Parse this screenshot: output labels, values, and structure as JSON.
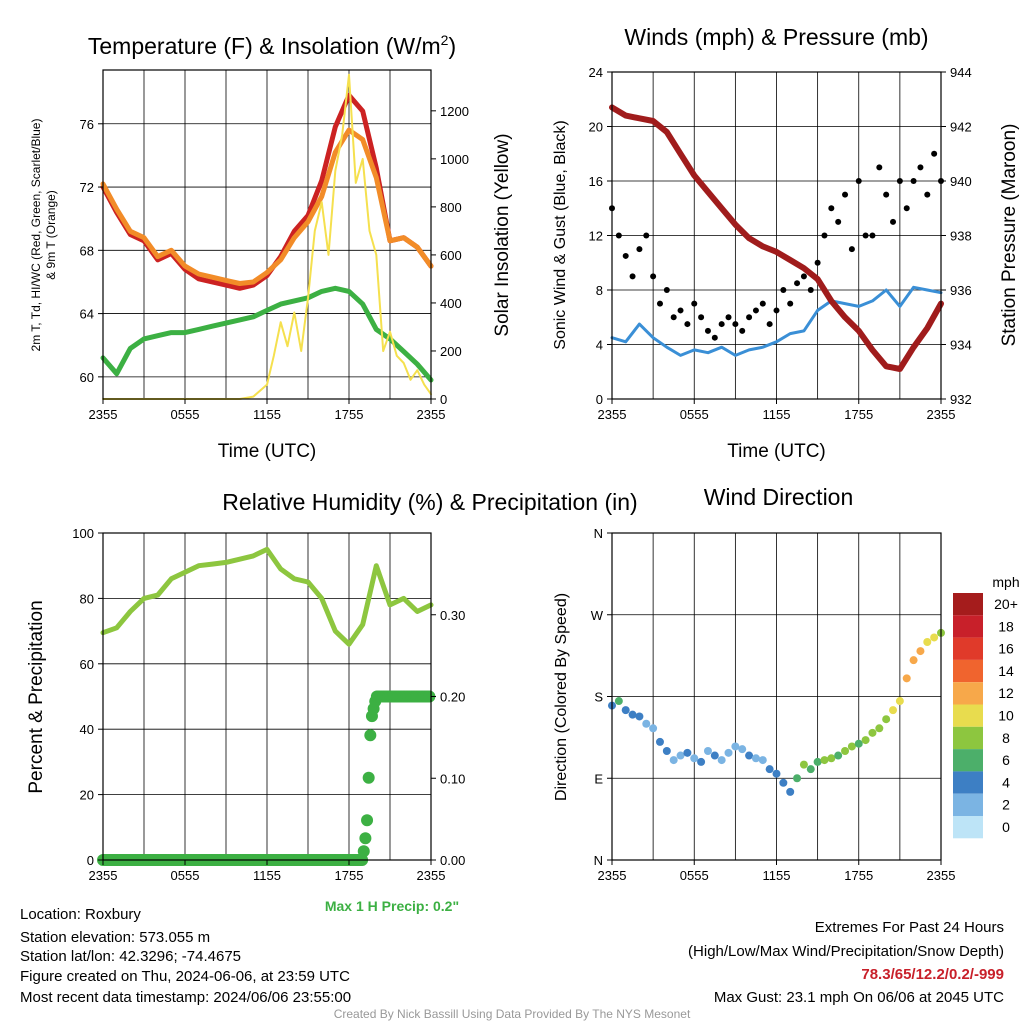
{
  "chart_data": [
    {
      "type": "line",
      "title": "Temperature (F) & Insolation (W/m2)",
      "title_main": "Temperature (F) & Insolation (W/m",
      "title_sup": "2",
      "title_end": ")",
      "xlabel": "Time (UTC)",
      "ylabel_line1": "2m T, Td, HI/WC (Red, Green, Scarlet/Blue)",
      "ylabel_line2": "& 9m T (Orange)",
      "ylabel_right": "Solar Insolation (Yellow)",
      "xticks": [
        "2355",
        "0555",
        "1155",
        "1755",
        "2355"
      ],
      "ylim": [
        58.6,
        79.4
      ],
      "yticks": [
        60,
        64,
        68,
        72,
        76
      ],
      "ylim_right": [
        0,
        1370
      ],
      "yticks_right": [
        0,
        200,
        400,
        600,
        800,
        1000,
        1200
      ],
      "series": [
        {
          "name": "2m Temperature",
          "color": "#cc2222",
          "x": [
            0,
            1,
            2,
            3,
            4,
            5,
            6,
            7,
            8,
            9,
            10,
            11,
            12,
            13,
            14,
            15,
            16,
            17,
            18,
            19,
            20,
            21,
            22,
            23,
            24
          ],
          "values": [
            72.0,
            70.4,
            69.0,
            68.6,
            67.4,
            67.8,
            66.8,
            66.2,
            66.0,
            65.8,
            65.6,
            65.8,
            66.4,
            67.6,
            69.2,
            70.2,
            72.4,
            75.8,
            77.8,
            76.8,
            73.2,
            68.6,
            68.8,
            68.2,
            67.0
          ]
        },
        {
          "name": "9m Temperature",
          "color": "#f28c28",
          "x": [
            0,
            1,
            2,
            3,
            4,
            5,
            6,
            7,
            8,
            9,
            10,
            11,
            12,
            13,
            14,
            15,
            16,
            17,
            18,
            19,
            20,
            21,
            22,
            23,
            24
          ],
          "values": [
            72.2,
            70.6,
            69.2,
            68.8,
            67.6,
            68.0,
            67.0,
            66.5,
            66.3,
            66.1,
            65.9,
            66.0,
            66.6,
            67.4,
            68.8,
            69.8,
            71.4,
            74.2,
            75.6,
            75.0,
            72.6,
            68.6,
            68.8,
            68.2,
            67.0
          ]
        },
        {
          "name": "Dew Point",
          "color": "#3cb043",
          "x": [
            0,
            1,
            2,
            3,
            4,
            5,
            6,
            7,
            8,
            9,
            10,
            11,
            12,
            13,
            14,
            15,
            16,
            17,
            18,
            19,
            20,
            21,
            22,
            23,
            24
          ],
          "values": [
            61.2,
            60.2,
            61.8,
            62.4,
            62.6,
            62.8,
            62.8,
            63.0,
            63.2,
            63.4,
            63.6,
            63.8,
            64.2,
            64.6,
            64.8,
            65.0,
            65.4,
            65.6,
            65.4,
            64.6,
            63.0,
            62.4,
            61.6,
            60.8,
            59.8
          ]
        },
        {
          "name": "Solar Insolation",
          "color": "#f5e04e",
          "axis": "right",
          "x": [
            0,
            2,
            4,
            6,
            8,
            9,
            10,
            11,
            12,
            12.5,
            13,
            13.5,
            14,
            14.5,
            15,
            15.5,
            16,
            16.5,
            17,
            17.5,
            18,
            18.5,
            19,
            19.5,
            20,
            20.5,
            21,
            21.5,
            22,
            22.5,
            23,
            23.5,
            24
          ],
          "values": [
            0,
            0,
            0,
            0,
            0,
            0,
            0,
            10,
            60,
            180,
            320,
            220,
            360,
            200,
            420,
            700,
            820,
            600,
            950,
            1100,
            1350,
            900,
            1000,
            700,
            600,
            200,
            280,
            180,
            150,
            80,
            120,
            60,
            20
          ]
        }
      ]
    },
    {
      "type": "scatter",
      "title": "Winds (mph) & Pressure (mb)",
      "xlabel": "Time (UTC)",
      "ylabel": "Sonic Wind & Gust (Blue, Black)",
      "ylabel_right": "Station Pressure (Maroon)",
      "xticks": [
        "2355",
        "0555",
        "1155",
        "1755",
        "2355"
      ],
      "ylim": [
        0,
        24
      ],
      "yticks": [
        0,
        4,
        8,
        12,
        16,
        20,
        24
      ],
      "ylim_right": [
        932,
        944
      ],
      "yticks_right": [
        932,
        934,
        936,
        938,
        940,
        942,
        944
      ],
      "series": [
        {
          "name": "Sonic Wind",
          "color": "#3a8fd6",
          "x": [
            0,
            1,
            2,
            3,
            4,
            5,
            6,
            7,
            8,
            9,
            10,
            11,
            12,
            13,
            14,
            15,
            16,
            17,
            18,
            19,
            20,
            21,
            22,
            23,
            24
          ],
          "values": [
            4.5,
            4.2,
            5.5,
            4.5,
            3.8,
            3.2,
            3.6,
            3.4,
            3.8,
            3.2,
            3.6,
            3.8,
            4.2,
            4.8,
            5.0,
            6.5,
            7.2,
            7.0,
            6.8,
            7.2,
            8.0,
            6.8,
            8.2,
            8.0,
            7.8
          ]
        },
        {
          "name": "Gust",
          "color": "#000000",
          "x": [
            0,
            0.5,
            1,
            1.5,
            2,
            2.5,
            3,
            3.5,
            4,
            4.5,
            5,
            5.5,
            6,
            6.5,
            7,
            7.5,
            8,
            8.5,
            9,
            9.5,
            10,
            10.5,
            11,
            11.5,
            12,
            12.5,
            13,
            13.5,
            14,
            14.5,
            15,
            15.5,
            16,
            16.5,
            17,
            17.5,
            18,
            18.5,
            19,
            19.5,
            20,
            20.5,
            21,
            21.5,
            22,
            22.5,
            23,
            23.5,
            24
          ],
          "values": [
            14,
            12,
            10.5,
            9,
            11,
            12,
            9,
            7,
            8,
            6,
            6.5,
            5.5,
            7,
            6,
            5,
            4.5,
            5.5,
            6,
            5.5,
            5,
            6,
            6.5,
            7,
            5.5,
            6.5,
            8,
            7,
            8.5,
            9,
            8,
            10,
            12,
            14,
            13,
            15,
            11,
            16,
            12,
            12,
            17,
            15,
            13,
            16,
            14,
            16,
            17,
            15,
            18,
            16
          ]
        },
        {
          "name": "Station Pressure",
          "color": "#a01c1c",
          "axis": "right",
          "x": [
            0,
            1,
            2,
            3,
            4,
            5,
            6,
            7,
            8,
            9,
            10,
            11,
            12,
            13,
            14,
            15,
            16,
            17,
            18,
            19,
            20,
            21,
            22,
            23,
            24
          ],
          "values": [
            942.7,
            942.4,
            942.3,
            942.2,
            941.8,
            941.0,
            940.2,
            939.6,
            939.0,
            938.4,
            937.9,
            937.6,
            937.4,
            937.1,
            936.8,
            936.4,
            935.6,
            935.0,
            934.5,
            933.8,
            933.2,
            933.1,
            933.9,
            934.6,
            935.5
          ]
        }
      ]
    },
    {
      "type": "line",
      "title": "Relative Humidity (%) & Precipitation (in)",
      "xlabel": "",
      "ylabel": "Percent & Precipitation",
      "xticks": [
        "2355",
        "0555",
        "1155",
        "1755",
        "2355"
      ],
      "ylim": [
        0,
        100
      ],
      "yticks": [
        0,
        20,
        40,
        60,
        80,
        100
      ],
      "ylim_right": [
        0,
        0.4
      ],
      "yticks_right": [
        "0.00",
        "0.10",
        "0.20",
        "0.30"
      ],
      "annotation": "Max 1 H Precip: 0.2\"",
      "series": [
        {
          "name": "Relative Humidity",
          "color": "#8dc63f",
          "x": [
            0,
            1,
            2,
            3,
            4,
            5,
            6,
            7,
            8,
            9,
            10,
            11,
            12,
            13,
            14,
            15,
            16,
            17,
            18,
            19,
            20,
            21,
            22,
            23,
            24
          ],
          "values": [
            69.5,
            71,
            76,
            80,
            81,
            86,
            88,
            90,
            90.5,
            91,
            92,
            93,
            95,
            89,
            86,
            85,
            80,
            70,
            66,
            72,
            90,
            78,
            80,
            76,
            78
          ]
        },
        {
          "name": "Accumulated Precipitation",
          "color": "#3cb043",
          "axis": "right",
          "x": [
            0,
            1,
            2,
            3,
            4,
            5,
            6,
            7,
            8,
            9,
            10,
            11,
            12,
            13,
            14,
            15,
            16,
            17,
            18,
            19,
            19.3,
            19.6,
            20,
            20.5,
            21,
            22,
            23,
            24
          ],
          "values": [
            0,
            0,
            0,
            0,
            0,
            0,
            0,
            0,
            0,
            0,
            0,
            0,
            0,
            0,
            0,
            0,
            0,
            0,
            0,
            0,
            0.04,
            0.17,
            0.2,
            0.2,
            0.2,
            0.2,
            0.2,
            0.2
          ]
        }
      ]
    },
    {
      "type": "scatter",
      "title": "Wind Direction",
      "ylabel": "Direction (Colored By Speed)",
      "xticks": [
        "2355",
        "0555",
        "1155",
        "1755",
        "2355"
      ],
      "ylim_deg": [
        0,
        360
      ],
      "yticks": [
        "N",
        "E",
        "S",
        "W",
        "N"
      ],
      "legend_title": "mph",
      "legend_labels": [
        "20+",
        "18",
        "16",
        "14",
        "12",
        "10",
        "8",
        "6",
        "4",
        "2",
        "0"
      ],
      "legend_colors": [
        "#a51c1c",
        "#c8202a",
        "#e03a2a",
        "#f0642e",
        "#f7a84a",
        "#e8dc4e",
        "#8dc63f",
        "#4caf6a",
        "#3d7fc4",
        "#7bb4e3",
        "#bde4f7"
      ],
      "series": [
        {
          "name": "Wind Direction (deg)",
          "x": [
            0,
            0.5,
            1,
            1.5,
            2,
            2.5,
            3,
            3.5,
            4,
            4.5,
            5,
            5.5,
            6,
            6.5,
            7,
            7.5,
            8,
            8.5,
            9,
            9.5,
            10,
            10.5,
            11,
            11.5,
            12,
            12.5,
            13,
            13.5,
            14,
            14.5,
            15,
            15.5,
            16,
            16.5,
            17,
            17.5,
            18,
            18.5,
            19,
            19.5,
            20,
            20.5,
            21,
            21.5,
            22,
            22.5,
            23,
            23.5,
            24
          ],
          "values": [
            170,
            175,
            165,
            160,
            158,
            150,
            145,
            130,
            120,
            110,
            115,
            118,
            112,
            108,
            120,
            115,
            110,
            118,
            125,
            122,
            115,
            112,
            110,
            100,
            95,
            85,
            75,
            90,
            105,
            100,
            108,
            110,
            112,
            115,
            120,
            125,
            128,
            132,
            140,
            145,
            155,
            165,
            175,
            200,
            220,
            230,
            240,
            245,
            250
          ],
          "speeds": [
            4,
            6,
            4,
            3,
            4,
            2,
            2,
            3,
            4,
            2,
            2,
            3,
            2,
            4,
            2,
            3,
            1,
            2,
            1,
            2,
            3,
            2,
            2,
            4,
            3,
            4,
            4,
            5,
            7,
            6,
            6,
            7,
            7,
            6,
            8,
            7,
            6,
            8,
            8,
            7,
            8,
            9,
            10,
            12,
            12,
            11,
            10,
            9,
            8
          ]
        }
      ]
    }
  ],
  "footer": {
    "location": "Location: Roxbury",
    "elevation": "Station elevation: 573.055 m",
    "latlon": "Station lat/lon: 42.3296; -74.4675",
    "created": "Figure created on Thu, 2024-06-06, at 23:59 UTC",
    "recent": "Most recent data timestamp: 2024/06/06 23:55:00",
    "extremes_title": "Extremes For Past 24 Hours",
    "extremes_sub": "(High/Low/Max Wind/Precipitation/Snow Depth)",
    "extremes_values": "78.3/65/12.2/0.2/-999",
    "max_gust": "Max Gust: 23.1 mph On 06/06 at 2045 UTC",
    "credit": "Created By Nick Bassill Using Data Provided By The NYS Mesonet"
  }
}
